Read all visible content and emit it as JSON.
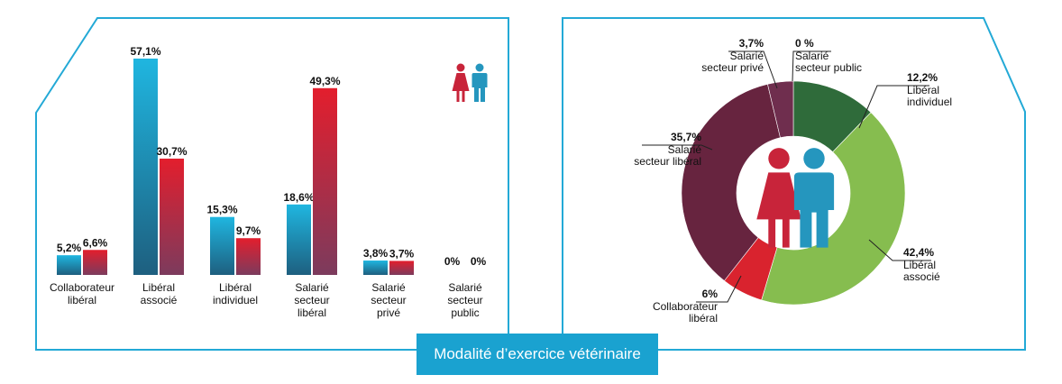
{
  "colors": {
    "frame": "#23a9d6",
    "banner_bg": "#1aa2d0",
    "men_top": "#1fb6e0",
    "men_bottom": "#1e5f7f",
    "women_top": "#e31e2d",
    "women_bottom": "#7c3b5d",
    "donut": [
      "#2f6b3a",
      "#86bd4f",
      "#d9232e",
      "#67243f",
      "#6f2e4e",
      "#0e2131"
    ],
    "woman_icon": "#c8243a",
    "man_icon": "#2596be"
  },
  "icons": [
    "woman-icon",
    "man-icon"
  ],
  "banner": {
    "title": "Modalité d’exercice vétérinaire"
  },
  "chart_data": [
    {
      "type": "bar",
      "categories": [
        [
          "Collaborateur",
          "libéral"
        ],
        [
          "Libéral",
          "associé"
        ],
        [
          "Libéral",
          "individuel"
        ],
        [
          "Salarié",
          "secteur",
          "libéral"
        ],
        [
          "Salarié",
          "secteur",
          "privé"
        ],
        [
          "Salarié",
          "secteur",
          "public"
        ]
      ],
      "series": [
        {
          "values": [
            5.2,
            57.1,
            15.3,
            18.6,
            3.8,
            0
          ],
          "labels": [
            "5,2%",
            "57,1%",
            "15,3%",
            "18,6%",
            "3,8%",
            "0%"
          ]
        },
        {
          "values": [
            6.6,
            30.7,
            9.7,
            49.3,
            3.7,
            0
          ],
          "labels": [
            "6,6%",
            "30,7%",
            "9,7%",
            "49,3%",
            "3,7%",
            "0%"
          ]
        }
      ],
      "ylim": [
        0,
        57.1
      ],
      "grid": false
    },
    {
      "type": "pie",
      "donut": true,
      "slices": [
        {
          "label": [
            "Libéral",
            "individuel"
          ],
          "value": 12.2,
          "value_label": "12,2%"
        },
        {
          "label": [
            "Libéral",
            "associé"
          ],
          "value": 42.4,
          "value_label": "42,4%"
        },
        {
          "label": [
            "Collaborateur",
            "libéral"
          ],
          "value": 6,
          "value_label": "6%"
        },
        {
          "label": [
            "Salarié",
            "secteur libéral"
          ],
          "value": 35.7,
          "value_label": "35,7%"
        },
        {
          "label": [
            "Salarié",
            "secteur privé"
          ],
          "value": 3.7,
          "value_label": "3,7%"
        },
        {
          "label": [
            "Salarié",
            "secteur public"
          ],
          "value": 0,
          "value_label": "0 %"
        }
      ]
    }
  ]
}
